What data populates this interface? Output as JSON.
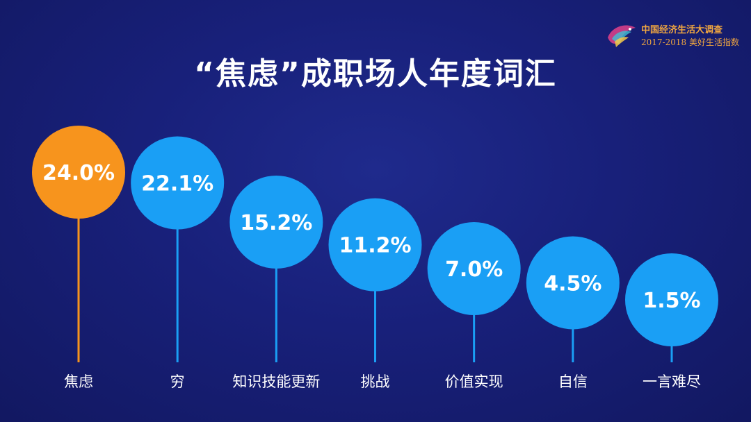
{
  "brand": {
    "line1": "中国经济生活大调查",
    "line2": "2017-2018 美好生活指数",
    "logo_icon": "colorful-bird-logo"
  },
  "title": "“焦虑”成职场人年度词汇",
  "colors": {
    "background": "#18207a",
    "highlight": "#f7941d",
    "bubble": "#1a9ff5",
    "stem_highlight": "#f7941d",
    "stem": "#1a9ff5"
  },
  "chart_data": {
    "type": "bar",
    "categories": [
      "焦虑",
      "穷",
      "知识技能更新",
      "挑战",
      "价值实现",
      "自信",
      "一言难尽"
    ],
    "values": [
      24.0,
      22.1,
      15.2,
      11.2,
      7.0,
      4.5,
      1.5
    ],
    "value_labels": [
      "24.0%",
      "22.1%",
      "15.2%",
      "11.2%",
      "7.0%",
      "4.5%",
      "1.5%"
    ],
    "highlight_index": 0,
    "grid": false
  }
}
